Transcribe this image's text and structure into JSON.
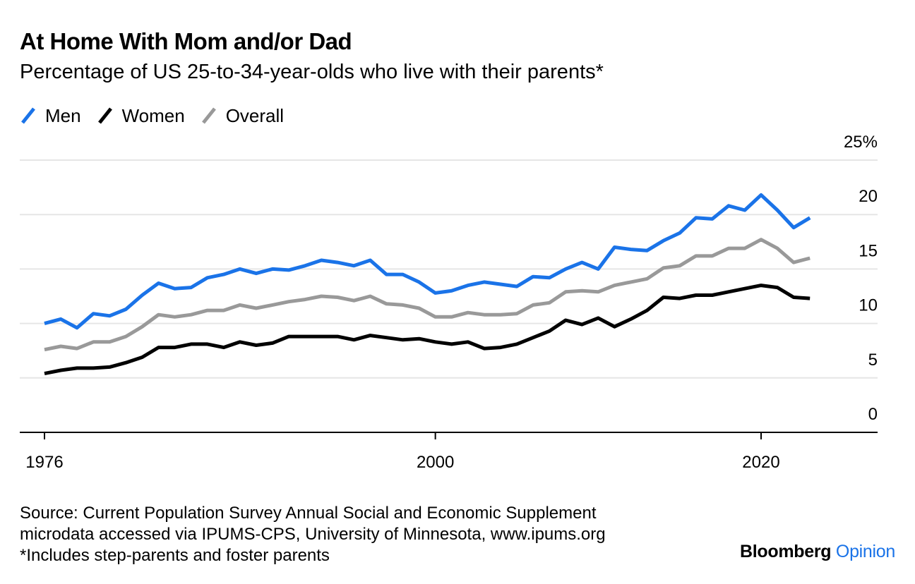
{
  "title": "At Home With Mom and/or Dad",
  "subtitle": "Percentage of US 25-to-34-year-olds who live with their parents*",
  "source_lines": [
    "Source: Current Population Survey Annual Social and Economic Supplement",
    "microdata accessed via IPUMS-CPS, University of Minnesota, www.ipums.org",
    "*Includes step-parents and foster parents"
  ],
  "brand": {
    "name": "Bloomberg",
    "section": "Opinion"
  },
  "colors": {
    "men": "#1a73e8",
    "women": "#000000",
    "overall": "#999999",
    "grid": "#e6e6e6",
    "axis": "#000000"
  },
  "chart_data": {
    "type": "line",
    "x": [
      1976,
      1977,
      1978,
      1979,
      1980,
      1981,
      1982,
      1983,
      1984,
      1985,
      1986,
      1987,
      1988,
      1989,
      1990,
      1991,
      1992,
      1993,
      1994,
      1995,
      1996,
      1997,
      1998,
      1999,
      2000,
      2001,
      2002,
      2003,
      2004,
      2005,
      2006,
      2007,
      2008,
      2009,
      2010,
      2011,
      2012,
      2013,
      2014,
      2015,
      2016,
      2017,
      2018,
      2019,
      2020,
      2021,
      2022,
      2023
    ],
    "series": [
      {
        "name": "Men",
        "color": "#1a73e8",
        "values": [
          10.0,
          10.4,
          9.6,
          10.9,
          10.7,
          11.3,
          12.6,
          13.7,
          13.2,
          13.3,
          14.2,
          14.5,
          15.0,
          14.6,
          15.0,
          14.9,
          15.3,
          15.8,
          15.6,
          15.3,
          15.8,
          14.5,
          14.5,
          13.8,
          12.8,
          13.0,
          13.5,
          13.8,
          13.6,
          13.4,
          14.3,
          14.2,
          15.0,
          15.6,
          15.0,
          17.0,
          16.8,
          16.7,
          17.6,
          18.3,
          19.7,
          19.6,
          20.8,
          20.4,
          21.8,
          20.4,
          18.8,
          19.7
        ]
      },
      {
        "name": "Women",
        "color": "#000000",
        "values": [
          5.4,
          5.7,
          5.9,
          5.9,
          6.0,
          6.4,
          6.9,
          7.8,
          7.8,
          8.1,
          8.1,
          7.8,
          8.3,
          8.0,
          8.2,
          8.8,
          8.8,
          8.8,
          8.8,
          8.5,
          8.9,
          8.7,
          8.5,
          8.6,
          8.3,
          8.1,
          8.3,
          7.7,
          7.8,
          8.1,
          8.7,
          9.3,
          10.3,
          9.9,
          10.5,
          9.7,
          10.4,
          11.2,
          12.4,
          12.3,
          12.6,
          12.6,
          12.9,
          13.2,
          13.5,
          13.3,
          12.4,
          12.3
        ]
      },
      {
        "name": "Overall",
        "color": "#999999",
        "values": [
          7.6,
          7.9,
          7.7,
          8.3,
          8.3,
          8.8,
          9.7,
          10.8,
          10.6,
          10.8,
          11.2,
          11.2,
          11.7,
          11.4,
          11.7,
          12.0,
          12.2,
          12.5,
          12.4,
          12.1,
          12.5,
          11.8,
          11.7,
          11.4,
          10.6,
          10.6,
          11.0,
          10.8,
          10.8,
          10.9,
          11.7,
          11.9,
          12.9,
          13.0,
          12.9,
          13.5,
          13.8,
          14.1,
          15.1,
          15.3,
          16.2,
          16.2,
          16.9,
          16.9,
          17.7,
          16.9,
          15.6,
          16.0
        ]
      }
    ],
    "xticks": [
      "1976",
      "2000",
      "2020"
    ],
    "yticks": [
      "25%",
      "20",
      "15",
      "10",
      "5",
      "0"
    ],
    "ylim": [
      0,
      25
    ],
    "xlabel": "",
    "ylabel": "",
    "legend": "top-left",
    "grid": true
  }
}
